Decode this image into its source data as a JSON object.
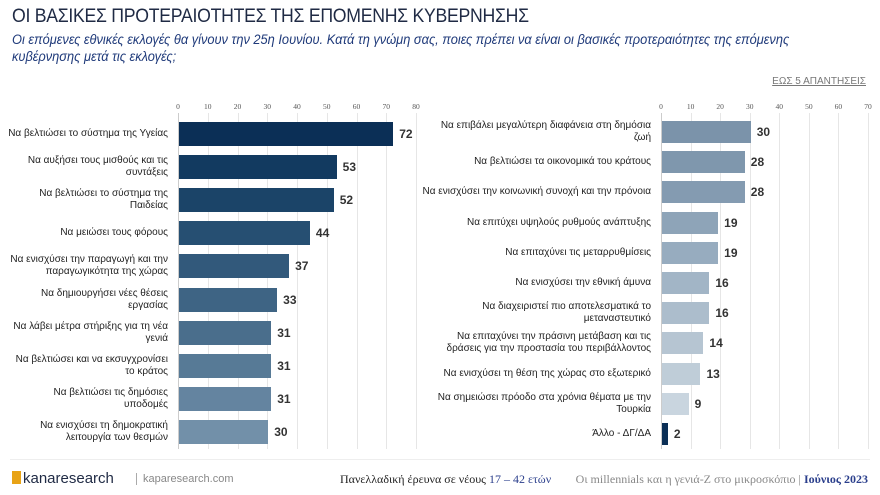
{
  "header": {
    "title": "ΟΙ ΒΑΣΙΚΕΣ ΠΡΟΤΕΡΑΙΟΤΗΤΕΣ ΤΗΣ ΕΠΟΜΕΝΗΣ ΚΥΒΕΡΝΗΣΗΣ",
    "subtitle": "Οι επόμενες εθνικές εκλογές θα γίνουν την 25η Ιουνίου. Κατά τη γνώμη σας, ποιες πρέπει να είναι οι βασικές προτεραιότητες της επόμενης κυβέρνησης μετά τις εκλογές;",
    "note": "ΕΩΣ 5 ΑΠΑΝΤΗΣΕΙΣ"
  },
  "chart_data": [
    {
      "type": "bar",
      "orientation": "horizontal",
      "xlim": [
        0,
        80
      ],
      "ticks": [
        0,
        10,
        20,
        30,
        40,
        50,
        60,
        70,
        80
      ],
      "grid": true,
      "categories": [
        "Να βελτιώσει το σύστημα της Υγείας",
        "Να αυξήσει τους μισθούς και τις συντάξεις",
        "Να βελτιώσει το σύστημα της Παιδείας",
        "Να μειώσει τους φόρους",
        "Να ενισχύσει την παραγωγή και την παραγωγικότητα της χώρας",
        "Να δημιουργήσει νέες θέσεις εργασίας",
        "Να λάβει μέτρα στήριξης για τη νέα γενιά",
        "Να βελτιώσει και να εκσυγχρονίσει το κράτος",
        "Να βελτιώσει τις δημόσιες υποδομές",
        "Να ενισχύσει τη δημοκρατική λειτουργία των θεσμών"
      ],
      "values": [
        72,
        53,
        52,
        44,
        37,
        33,
        31,
        31,
        31,
        30
      ],
      "colors": [
        "#0b2f56",
        "#123a60",
        "#1b4468",
        "#264f72",
        "#32597b",
        "#3e6484",
        "#4a6e8c",
        "#577a96",
        "#6484a0",
        "#7290a9"
      ]
    },
    {
      "type": "bar",
      "orientation": "horizontal",
      "xlim": [
        0,
        70
      ],
      "ticks": [
        0,
        10,
        20,
        30,
        40,
        50,
        60,
        70
      ],
      "grid": true,
      "categories": [
        "Να επιβάλει μεγαλύτερη διαφάνεια στη δημόσια ζωή",
        "Να βελτιώσει τα οικονομικά του κράτους",
        "Να ενισχύσει την κοινωνική συνοχή και την πρόνοια",
        "Να επιτύχει υψηλούς ρυθμούς ανάπτυξης",
        "Να επιταχύνει τις μεταρρυθμίσεις",
        "Να ενισχύσει την εθνική άμυνα",
        "Να διαχειριστεί πιο αποτελεσματικά το μεταναστευτικό",
        "Να επιταχύνει την πράσινη μετάβαση και τις δράσεις για την προστασία του περιβάλλοντος",
        "Να ενισχύσει τη θέση της χώρας στο εξωτερικό",
        "Να σημειώσει πρόοδο στα χρόνια θέματα με την Τουρκία",
        "Άλλο - ΔΓ/ΔΑ"
      ],
      "values": [
        30,
        28,
        28,
        19,
        19,
        16,
        16,
        14,
        13,
        9,
        2
      ],
      "colors": [
        "#7b93aa",
        "#7f97ad",
        "#849bb1",
        "#8ea4b8",
        "#97acbf",
        "#a2b5c6",
        "#acbdcc",
        "#b6c5d2",
        "#bfcdd8",
        "#c9d5df",
        "#0b2f56"
      ]
    }
  ],
  "footer": {
    "logo": "kanaresearch",
    "site": "kaparesearch.com",
    "survey_prefix": "Πανελλαδική έρευνα σε νέους ",
    "survey_highlight": "17 – 42 ετών",
    "study": "Οι millennials και η γενιά-Z στο μικροσκόπιο | ",
    "date": "Ιούνιος 2023"
  }
}
